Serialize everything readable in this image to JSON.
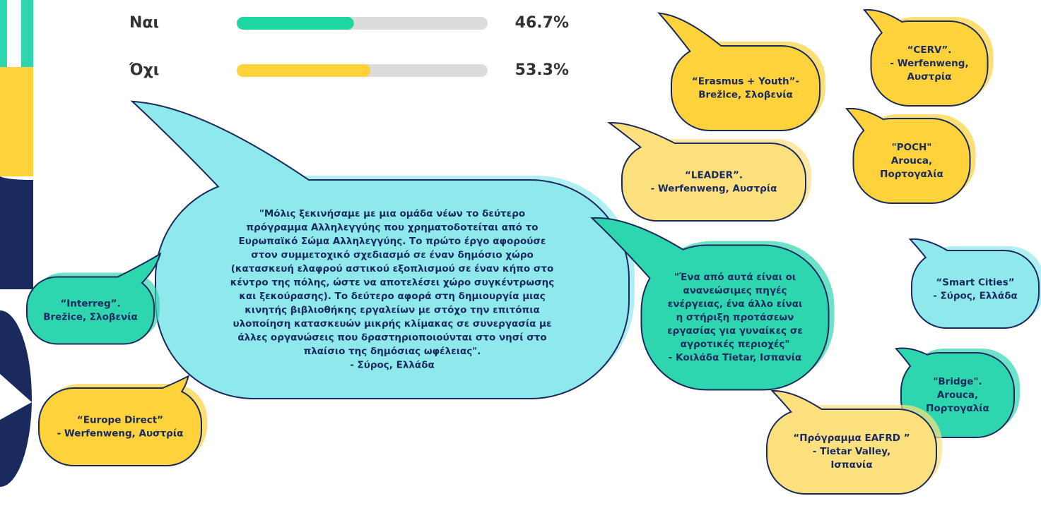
{
  "chart_data": {
    "type": "bar",
    "orientation": "horizontal",
    "categories": [
      "Ναι",
      "Όχι"
    ],
    "values": [
      46.7,
      53.3
    ],
    "value_labels": [
      "46.7%",
      "53.3%"
    ],
    "colors": [
      "#1dd6a0",
      "#fdd23a"
    ],
    "xlim": [
      0,
      100
    ]
  },
  "bubbles": [
    {
      "lines": [
        "“Erasmus + Youth”-",
        "Brežice, Σλοβενία"
      ],
      "color": "#fdd23a"
    },
    {
      "lines": [
        "“CERV”.",
        "- Werfenweng,",
        "Αυστρία"
      ],
      "color": "#fdd23a"
    },
    {
      "lines": [
        "\"POCH\"",
        "Arouca,",
        "Πορτογαλία"
      ],
      "color": "#fdd23a"
    },
    {
      "lines": [
        "“LEADER”.",
        "- Werfenweng, Αυστρία"
      ],
      "color": "#fde07e"
    },
    {
      "lines": [
        "\"Μόλις ξεκινήσαμε με μια ομάδα νέων το δεύτερο",
        "πρόγραμμα Αλληλεγγύης που χρηματοδοτείται από το",
        "Ευρωπαϊκό Σώμα Αλληλεγγύης. Το πρώτο έργο αφορούσε",
        "στον συμμετοχικό σχεδιασμό σε έναν δημόσιο χώρο",
        "(κατασκευή ελαφρού αστικού εξοπλισμού σε έναν κήπο στο",
        "κέντρο της πόλης, ώστε να αποτελέσει χώρο συγκέντρωσης",
        "και ξεκούρασης). Το δεύτερο αφορά στη δημιουργία μιας",
        "κινητής βιβλιοθήκης εργαλείων με στόχο την επιτόπια",
        "υλοποίηση κατασκευών μικρής κλίμακας σε συνεργασία με",
        "άλλες οργανώσεις που δραστηριοποιούνται στο νησί στο",
        "πλαίσιο της δημόσιας ωφέλειας\".",
        "- Σύρος, Ελλάδα"
      ],
      "color": "#8ee8ec"
    },
    {
      "lines": [
        "“Interreg”.",
        "Brežice, Σλοβενία"
      ],
      "color": "#2dd6ae"
    },
    {
      "lines": [
        "“Europe Direct”",
        "- Werfenweng, Αυστρία"
      ],
      "color": "#fdd23a"
    },
    {
      "lines": [
        "\"Ένα από αυτά είναι οι",
        "ανανεώσιμες πηγές",
        "ενέργειας, ένα άλλο είναι",
        "η στήριξη προτάσεων",
        "εργασίας για γυναίκες σε",
        "αγροτικές περιοχές\"",
        "- Κοιλάδα Tietar, Ισπανία"
      ],
      "color": "#2dd6ae"
    },
    {
      "lines": [
        "“Smart Cities”",
        "- Σύρος, Ελλάδα"
      ],
      "color": "#8ee8ec"
    },
    {
      "lines": [
        "\"Bridge\".",
        "Arouca,",
        "Πορτογαλία"
      ],
      "color": "#2dd6ae"
    },
    {
      "lines": [
        "“Πρόγραμμα EAFRD ”",
        "- Tietar Valley,",
        "Ισπανία"
      ],
      "color": "#fde07e"
    }
  ]
}
